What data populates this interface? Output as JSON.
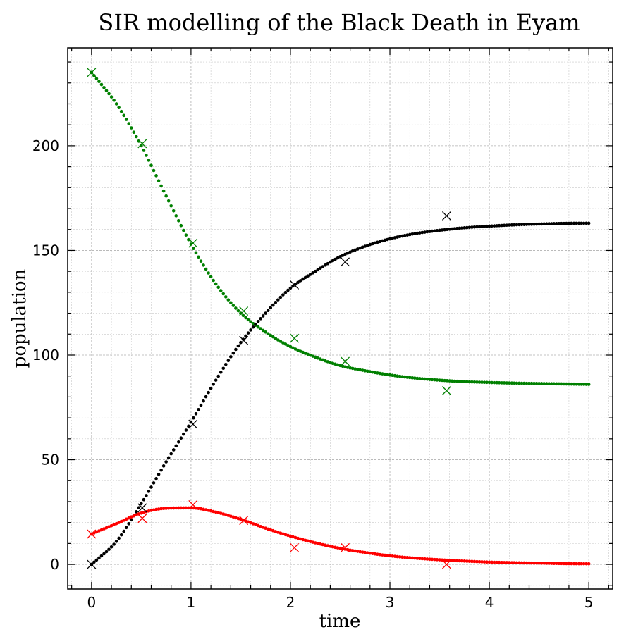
{
  "chart_data": {
    "type": "scatter",
    "title": "SIR modelling of the Black Death in Eyam",
    "xlabel": "time",
    "ylabel": "population",
    "xlim": [
      -0.24,
      5.24
    ],
    "ylim": [
      -11.75,
      246.75
    ],
    "xticks": [
      0,
      1,
      2,
      3,
      4,
      5
    ],
    "xtick_labels": [
      "0",
      "1",
      "2",
      "3",
      "4",
      "5"
    ],
    "yticks": [
      0,
      50,
      100,
      150,
      200
    ],
    "ytick_labels": [
      "0",
      "50",
      "100",
      "150",
      "200"
    ],
    "grid": true,
    "legend": "none",
    "model_series": [
      {
        "color": "#008000",
        "marker": "dot",
        "x": [
          0,
          0.25,
          0.5,
          0.75,
          1.0,
          1.25,
          1.5,
          1.75,
          2.0,
          2.25,
          2.5,
          2.75,
          3.0,
          3.25,
          3.5,
          3.75,
          4.0,
          4.25,
          4.5,
          4.75,
          5.0
        ],
        "y": [
          235,
          220,
          200,
          176,
          153,
          134,
          120,
          111,
          104,
          99,
          95,
          92.5,
          90.5,
          89,
          88,
          87.3,
          86.9,
          86.6,
          86.4,
          86.2,
          86
        ]
      },
      {
        "color": "#000000",
        "marker": "dot",
        "x": [
          0,
          0.25,
          0.5,
          0.75,
          1.0,
          1.25,
          1.5,
          1.75,
          2.0,
          2.25,
          2.5,
          2.75,
          3.0,
          3.25,
          3.5,
          3.75,
          4.0,
          4.25,
          4.5,
          4.75,
          5.0
        ],
        "y": [
          0,
          11,
          29,
          49,
          68,
          88,
          106,
          120,
          132,
          140,
          147,
          152,
          155.5,
          158,
          159.6,
          160.8,
          161.6,
          162.2,
          162.6,
          162.9,
          163
        ]
      },
      {
        "color": "#ff0000",
        "marker": "dot",
        "x": [
          0,
          0.25,
          0.5,
          0.75,
          1.0,
          1.25,
          1.5,
          1.75,
          2.0,
          2.25,
          2.5,
          2.75,
          3.0,
          3.25,
          3.5,
          3.75,
          4.0,
          4.25,
          4.5,
          4.75,
          5.0
        ],
        "y": [
          14.5,
          19.5,
          24.5,
          26.8,
          27,
          25,
          21.5,
          17.3,
          13.5,
          10.3,
          7.7,
          5.7,
          4.1,
          3,
          2.2,
          1.6,
          1.1,
          0.8,
          0.6,
          0.4,
          0.3
        ]
      }
    ],
    "observed_series": [
      {
        "color": "#008000",
        "marker": "x",
        "x": [
          0,
          0.51,
          1.02,
          1.53,
          2.04,
          2.55,
          3.57
        ],
        "y": [
          235,
          201,
          153.5,
          121,
          108,
          97,
          83
        ]
      },
      {
        "color": "#000000",
        "marker": "x",
        "x": [
          0,
          0.51,
          1.02,
          1.53,
          2.04,
          2.55,
          3.57
        ],
        "y": [
          0,
          27,
          67,
          107,
          133.5,
          144.5,
          166.5
        ]
      },
      {
        "color": "#ff0000",
        "marker": "x",
        "x": [
          0,
          0.51,
          1.02,
          1.53,
          2.04,
          2.55,
          3.57
        ],
        "y": [
          14.5,
          22,
          28.5,
          21,
          8,
          8,
          0
        ]
      }
    ]
  }
}
